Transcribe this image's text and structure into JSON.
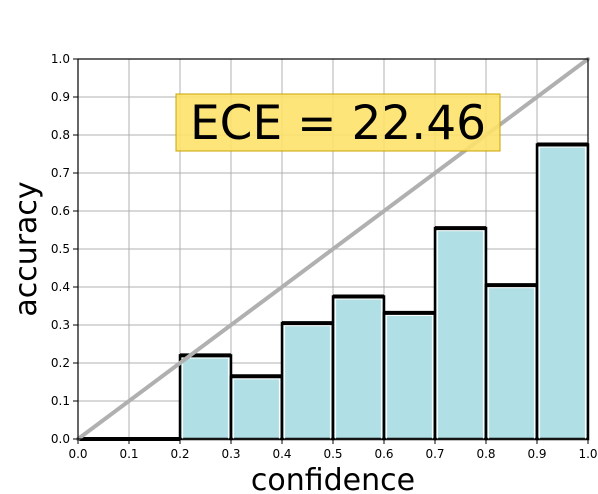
{
  "chart_data": {
    "type": "bar",
    "title": "",
    "xlabel": "confidence",
    "ylabel": "accuracy",
    "xlim": [
      0.0,
      1.0
    ],
    "ylim": [
      0.0,
      1.0
    ],
    "grid": true,
    "bin_width": 0.1,
    "x_ticks": [
      "0.0",
      "0.1",
      "0.2",
      "0.3",
      "0.4",
      "0.5",
      "0.6",
      "0.7",
      "0.8",
      "0.9",
      "1.0"
    ],
    "y_ticks": [
      "0.0",
      "0.1",
      "0.2",
      "0.3",
      "0.4",
      "0.5",
      "0.6",
      "0.7",
      "0.8",
      "0.9",
      "1.0"
    ],
    "bins": [
      {
        "start": 0.0,
        "accuracy": 0.0
      },
      {
        "start": 0.1,
        "accuracy": 0.0
      },
      {
        "start": 0.2,
        "accuracy": 0.22
      },
      {
        "start": 0.3,
        "accuracy": 0.165
      },
      {
        "start": 0.4,
        "accuracy": 0.305
      },
      {
        "start": 0.5,
        "accuracy": 0.375
      },
      {
        "start": 0.6,
        "accuracy": 0.332
      },
      {
        "start": 0.7,
        "accuracy": 0.555
      },
      {
        "start": 0.8,
        "accuracy": 0.405
      },
      {
        "start": 0.9,
        "accuracy": 0.775
      }
    ],
    "reference_line": {
      "from": [
        0.0,
        0.0
      ],
      "to": [
        1.0,
        1.0
      ],
      "color": "#b0b0b0"
    },
    "annotation": {
      "text": "ECE = 22.46",
      "background": "#fde26b",
      "border": "#c9a400"
    },
    "bar_color": "#b0dfe5",
    "edge_color": "#000000"
  }
}
